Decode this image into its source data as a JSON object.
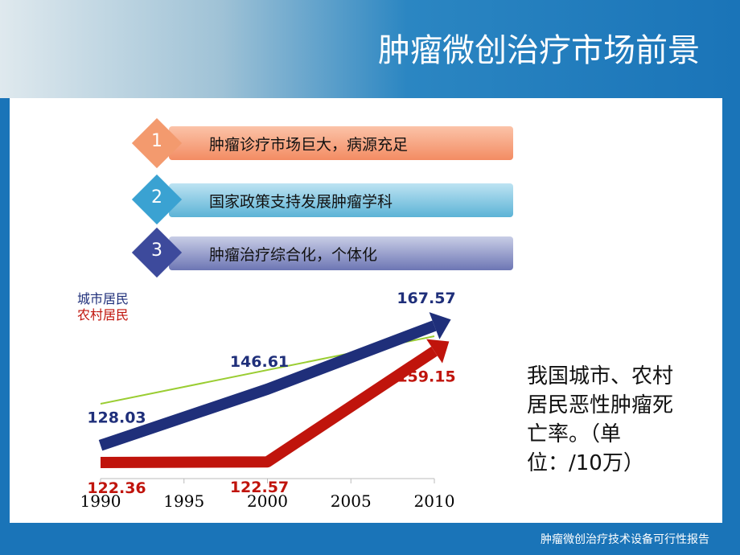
{
  "header": {
    "title": "肿瘤微创治疗市场前景"
  },
  "list": [
    {
      "number": "1",
      "text": "肿瘤诊疗市场巨大，病源充足"
    },
    {
      "number": "2",
      "text": "国家政策支持发展肿瘤学科"
    },
    {
      "number": "3",
      "text": "肿瘤治疗综合化，个体化"
    }
  ],
  "chart_data": {
    "type": "line",
    "x": [
      1990,
      2000,
      2010
    ],
    "xlim": [
      1990,
      2010
    ],
    "xticks": [
      1990,
      1995,
      2000,
      2005,
      2010
    ],
    "series": [
      {
        "name": "城市居民",
        "color": "#1f2f7a",
        "values": [
          128.03,
          146.61,
          167.57
        ]
      },
      {
        "name": "农村居民",
        "color": "#c0140c",
        "values": [
          122.36,
          122.57,
          159.15
        ]
      }
    ]
  },
  "note": "我国城市、农村居民恶性肿瘤死亡率。（单位：/10万）",
  "footer": "肿瘤微创治疗技术设备可行性报告"
}
